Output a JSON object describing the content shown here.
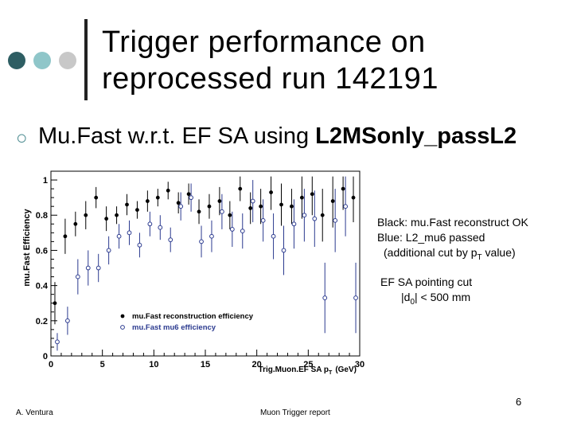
{
  "slide": {
    "title_line1": "Trigger performance on",
    "title_line2": "reprocessed run 142191",
    "bullet_prefix": "Mu.Fast w.r.t. EF SA using ",
    "bullet_bold": "L2MSonly_passL2",
    "note1": {
      "line1": "Black: mu.Fast reconstruct OK",
      "line2": "Blue:  L2_mu6 passed",
      "line3_pre": "(additional cut by p",
      "line3_sub": "T",
      "line3_post": " value)"
    },
    "note2": {
      "line1": "EF SA pointing cut",
      "line2_pre": "|d",
      "line2_sub": "0",
      "line2_post": "| < 500 mm"
    },
    "footer_left": "A. Ventura",
    "footer_center": "Muon Trigger report",
    "page_number": "6",
    "colors": {
      "dot1": "#2e5e63",
      "dot2": "#8fc6c9",
      "dot3": "#c8c8c8",
      "series1": "#000000",
      "series2": "#2b3a8f"
    }
  },
  "chart_data": {
    "type": "scatter",
    "ylabel": "mu.Fast Efficiency",
    "xlabel": "Trig.Muon.EF SA p",
    "xlabel_sub": "T",
    "xlabel_unit": "(GeV)",
    "xlim": [
      0,
      30
    ],
    "ylim": [
      0,
      1.05
    ],
    "x_ticks": [
      "0",
      "5",
      "10",
      "15",
      "20",
      "25",
      "30"
    ],
    "y_ticks": [
      "0",
      "0.2",
      "0.4",
      "0.6",
      "0.8",
      "1"
    ],
    "legend": [
      "mu.Fast reconstruction efficiency",
      "mu.Fast mu6 efficiency"
    ],
    "series": [
      {
        "name": "mu.Fast reconstruction efficiency",
        "marker": "filled-circle",
        "x": [
          0.5,
          1.5,
          2.5,
          3.5,
          4.5,
          5.5,
          6.5,
          7.5,
          8.5,
          9.5,
          10.5,
          11.5,
          12.5,
          13.5,
          14.5,
          15.5,
          16.5,
          17.5,
          18.5,
          19.5,
          20.5,
          21.5,
          22.5,
          23.5,
          24.5,
          25.5,
          26.5,
          27.5,
          28.5,
          29.5
        ],
        "y": [
          0.3,
          0.68,
          0.75,
          0.8,
          0.9,
          0.78,
          0.8,
          0.86,
          0.83,
          0.88,
          0.9,
          0.94,
          0.87,
          0.92,
          0.82,
          0.85,
          0.88,
          0.8,
          0.95,
          0.84,
          0.85,
          0.93,
          0.86,
          0.85,
          0.9,
          0.92,
          0.8,
          0.88,
          0.95,
          0.9
        ],
        "err": [
          0.12,
          0.1,
          0.07,
          0.08,
          0.06,
          0.07,
          0.05,
          0.06,
          0.05,
          0.06,
          0.05,
          0.05,
          0.06,
          0.06,
          0.07,
          0.07,
          0.08,
          0.08,
          0.07,
          0.09,
          0.1,
          0.1,
          0.12,
          0.1,
          0.12,
          0.12,
          0.15,
          0.15,
          0.12,
          0.14
        ]
      },
      {
        "name": "mu.Fast mu6 efficiency",
        "marker": "open-circle",
        "x": [
          0.5,
          1.5,
          2.5,
          3.5,
          4.5,
          5.5,
          6.5,
          7.5,
          8.5,
          9.5,
          10.5,
          11.5,
          12.5,
          13.5,
          14.5,
          15.5,
          16.5,
          17.5,
          18.5,
          19.5,
          20.5,
          21.5,
          22.5,
          23.5,
          24.5,
          25.5,
          26.5,
          27.5,
          28.5,
          29.5
        ],
        "y": [
          0.08,
          0.2,
          0.45,
          0.5,
          0.5,
          0.6,
          0.68,
          0.7,
          0.63,
          0.75,
          0.73,
          0.66,
          0.85,
          0.9,
          0.65,
          0.68,
          0.82,
          0.72,
          0.71,
          0.88,
          0.77,
          0.68,
          0.6,
          0.75,
          0.8,
          0.78,
          0.33,
          0.77,
          0.85,
          0.33
        ],
        "err": [
          0.05,
          0.08,
          0.1,
          0.1,
          0.08,
          0.08,
          0.07,
          0.07,
          0.07,
          0.07,
          0.07,
          0.07,
          0.08,
          0.08,
          0.09,
          0.09,
          0.1,
          0.1,
          0.1,
          0.12,
          0.12,
          0.13,
          0.14,
          0.14,
          0.15,
          0.16,
          0.2,
          0.18,
          0.17,
          0.2
        ]
      }
    ]
  }
}
